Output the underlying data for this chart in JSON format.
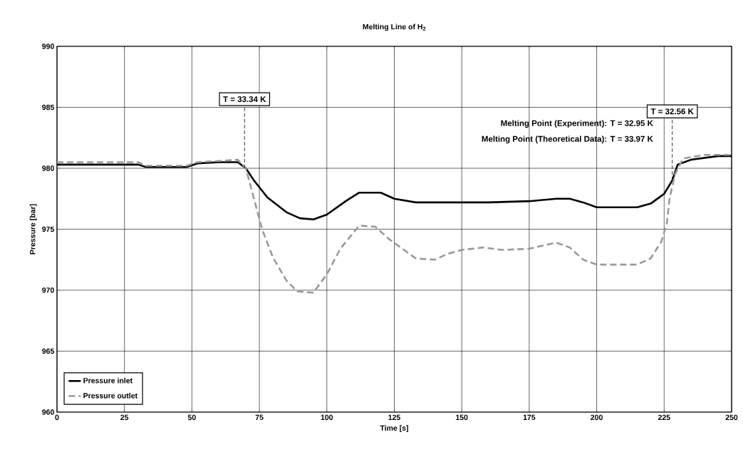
{
  "chart_data": {
    "type": "line",
    "title": "Melting Line of H$_{2}$",
    "xlabel": "Time [s]",
    "ylabel": "Pressure [bar]",
    "xlim": [
      0,
      250
    ],
    "ylim": [
      960,
      990
    ],
    "xticks": [
      0,
      25,
      50,
      75,
      100,
      125,
      150,
      175,
      200,
      225,
      250
    ],
    "yticks": [
      960,
      965,
      970,
      975,
      980,
      985,
      990
    ],
    "grid": true,
    "legend": "bottom left",
    "marker": "none",
    "annotations": [
      {
        "text": "T = 33.34 K",
        "x": 69.5,
        "y": 980
      },
      {
        "text": "T = 32.56 K",
        "x": 228,
        "y": 979
      },
      "Melting Point (Experiment): T = 32.95 K",
      "Melting Point (Theoretical Data): T = 33.97 K"
    ],
    "series": [
      {
        "name": "Pressure inlet",
        "color": "#000000",
        "line_style": "solid",
        "x": [
          0,
          30,
          33,
          48,
          52,
          60,
          67,
          70,
          73,
          78,
          85,
          90,
          95,
          100,
          107,
          112,
          120,
          125,
          133,
          145,
          160,
          175,
          185,
          190,
          195,
          200,
          215,
          220,
          225,
          228,
          230,
          235,
          245,
          250
        ],
        "values": [
          980.3,
          980.3,
          980.1,
          980.1,
          980.4,
          980.5,
          980.5,
          980.0,
          979.0,
          977.6,
          976.4,
          975.9,
          975.8,
          976.2,
          977.3,
          978.0,
          978.0,
          977.5,
          977.2,
          977.2,
          977.2,
          977.3,
          977.5,
          977.5,
          977.2,
          976.8,
          976.8,
          977.1,
          977.9,
          979.0,
          980.3,
          980.7,
          981.0,
          981.0
        ]
      },
      {
        "name": "Pressure outlet",
        "color": "#999999",
        "line_style": "dashed",
        "x": [
          0,
          30,
          33,
          48,
          52,
          60,
          67,
          70,
          73,
          76,
          80,
          85,
          89,
          95,
          100,
          105,
          112,
          118,
          123,
          128,
          133,
          140,
          145,
          150,
          158,
          165,
          175,
          185,
          190,
          195,
          200,
          215,
          220,
          224,
          226,
          227,
          229,
          232,
          240,
          250
        ],
        "values": [
          980.5,
          980.5,
          980.2,
          980.2,
          980.5,
          980.6,
          980.7,
          980.0,
          977.5,
          975.0,
          972.7,
          970.8,
          969.9,
          969.8,
          971.3,
          973.4,
          975.3,
          975.2,
          974.2,
          973.4,
          972.6,
          972.5,
          973.0,
          973.3,
          973.5,
          973.3,
          973.4,
          973.9,
          973.5,
          972.5,
          972.1,
          972.1,
          972.6,
          974.0,
          975.5,
          977.5,
          979.5,
          980.8,
          981.1,
          981.1
        ]
      }
    ]
  }
}
